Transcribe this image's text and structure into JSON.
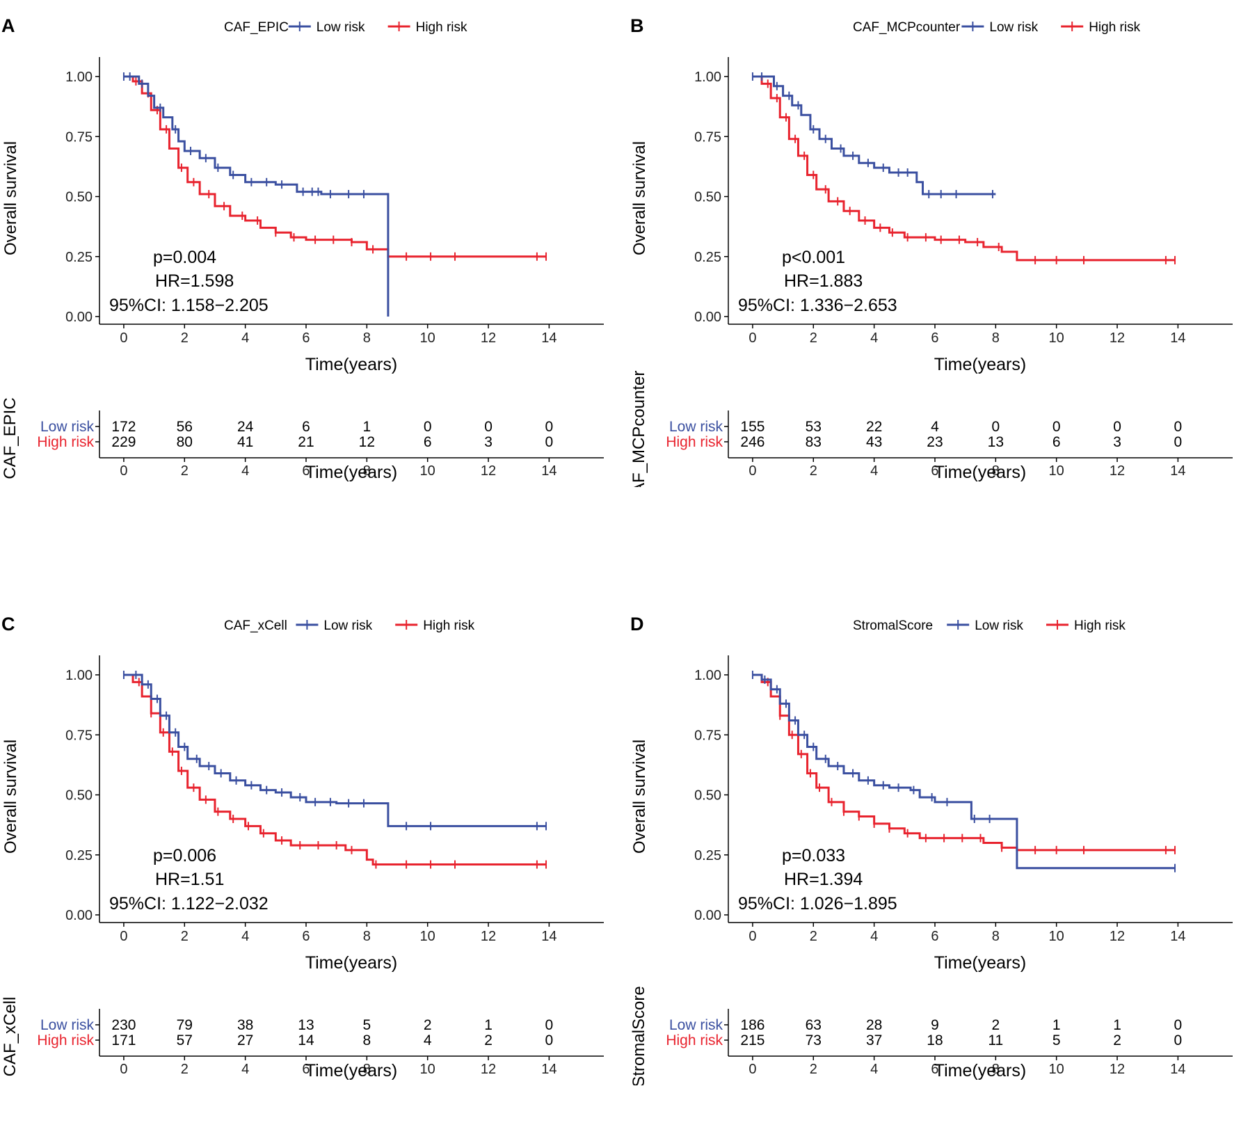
{
  "chart_data": [
    {
      "type": "line",
      "panel_letter": "A",
      "legend_title": "CAF_EPIC",
      "legend": [
        "Low risk",
        "High risk"
      ],
      "colors": {
        "low": "#3a4fa0",
        "high": "#e8232e"
      },
      "ylabel": "Overall survival",
      "xlabel": "Time(years)",
      "xticks": [
        0,
        2,
        4,
        6,
        8,
        10,
        12,
        14
      ],
      "yticks": [
        "1.00",
        "0.75",
        "0.50",
        "0.25",
        "0.00"
      ],
      "xlim": [
        -0.8,
        15.8
      ],
      "ylim": [
        0,
        1
      ],
      "stats": {
        "p": "p=0.004",
        "hr": "HR=1.598",
        "ci": "95%CI: 1.158−2.205"
      },
      "series": [
        {
          "name": "Low risk",
          "points": [
            [
              0,
              1
            ],
            [
              0.3,
              1
            ],
            [
              0.5,
              0.97
            ],
            [
              0.8,
              0.92
            ],
            [
              1.0,
              0.87
            ],
            [
              1.3,
              0.83
            ],
            [
              1.6,
              0.78
            ],
            [
              1.8,
              0.73
            ],
            [
              2.0,
              0.69
            ],
            [
              2.5,
              0.66
            ],
            [
              3.0,
              0.62
            ],
            [
              3.5,
              0.59
            ],
            [
              4.0,
              0.56
            ],
            [
              5.0,
              0.55
            ],
            [
              5.5,
              0.55
            ],
            [
              5.7,
              0.52
            ],
            [
              6.5,
              0.51
            ],
            [
              8.7,
              0.51
            ],
            [
              8.7,
              0
            ]
          ],
          "censor": [
            0,
            0.2,
            0.6,
            1.2,
            1.7,
            2.2,
            2.7,
            3.1,
            3.6,
            4.2,
            4.7,
            5.2,
            5.9,
            6.2,
            6.4,
            6.8,
            7.4,
            7.9
          ]
        },
        {
          "name": "High risk",
          "points": [
            [
              0,
              1
            ],
            [
              0.3,
              0.98
            ],
            [
              0.6,
              0.93
            ],
            [
              0.9,
              0.86
            ],
            [
              1.2,
              0.78
            ],
            [
              1.5,
              0.7
            ],
            [
              1.8,
              0.62
            ],
            [
              2.1,
              0.56
            ],
            [
              2.5,
              0.51
            ],
            [
              3.0,
              0.46
            ],
            [
              3.5,
              0.42
            ],
            [
              4.0,
              0.4
            ],
            [
              4.5,
              0.37
            ],
            [
              5.0,
              0.35
            ],
            [
              5.5,
              0.33
            ],
            [
              6.0,
              0.32
            ],
            [
              7.5,
              0.31
            ],
            [
              8.0,
              0.28
            ],
            [
              8.7,
              0.25
            ],
            [
              13.9,
              0.25
            ]
          ],
          "censor": [
            0.4,
            0.8,
            1.1,
            1.4,
            1.9,
            2.3,
            2.8,
            3.3,
            3.9,
            4.4,
            5.0,
            5.6,
            6.3,
            6.9,
            7.5,
            8.2,
            9.3,
            10.1,
            10.9,
            13.6,
            13.9
          ]
        }
      ],
      "risk_table": {
        "ylabel": "CAF_EPIC",
        "rows": [
          {
            "label": "Low risk",
            "values": [
              "172",
              "56",
              "24",
              "6",
              "1",
              "0",
              "0",
              "0"
            ]
          },
          {
            "label": "High risk",
            "values": [
              "229",
              "80",
              "41",
              "21",
              "12",
              "6",
              "3",
              "0"
            ]
          }
        ]
      }
    },
    {
      "type": "line",
      "panel_letter": "B",
      "legend_title": "CAF_MCPcounter",
      "legend": [
        "Low risk",
        "High risk"
      ],
      "colors": {
        "low": "#3a4fa0",
        "high": "#e8232e"
      },
      "ylabel": "Overall survival",
      "xlabel": "Time(years)",
      "xticks": [
        0,
        2,
        4,
        6,
        8,
        10,
        12,
        14
      ],
      "yticks": [
        "1.00",
        "0.75",
        "0.50",
        "0.25",
        "0.00"
      ],
      "xlim": [
        -0.8,
        15.8
      ],
      "ylim": [
        0,
        1
      ],
      "stats": {
        "p": "p<0.001",
        "hr": "HR=1.883",
        "ci": "95%CI: 1.336−2.653"
      },
      "series": [
        {
          "name": "Low risk",
          "points": [
            [
              0,
              1
            ],
            [
              0.4,
              1
            ],
            [
              0.7,
              0.96
            ],
            [
              1.0,
              0.92
            ],
            [
              1.3,
              0.88
            ],
            [
              1.6,
              0.84
            ],
            [
              1.9,
              0.78
            ],
            [
              2.2,
              0.74
            ],
            [
              2.6,
              0.7
            ],
            [
              3.0,
              0.67
            ],
            [
              3.5,
              0.64
            ],
            [
              4.0,
              0.62
            ],
            [
              4.5,
              0.6
            ],
            [
              5.4,
              0.6
            ],
            [
              5.4,
              0.56
            ],
            [
              5.6,
              0.51
            ],
            [
              8.0,
              0.51
            ]
          ],
          "censor": [
            0,
            0.3,
            0.8,
            1.2,
            1.5,
            2.0,
            2.4,
            2.9,
            3.3,
            3.8,
            4.3,
            4.8,
            5.1,
            5.8,
            6.2,
            6.7,
            7.9
          ]
        },
        {
          "name": "High risk",
          "points": [
            [
              0,
              1
            ],
            [
              0.3,
              0.97
            ],
            [
              0.6,
              0.91
            ],
            [
              0.9,
              0.83
            ],
            [
              1.2,
              0.74
            ],
            [
              1.5,
              0.67
            ],
            [
              1.8,
              0.59
            ],
            [
              2.1,
              0.53
            ],
            [
              2.5,
              0.48
            ],
            [
              3.0,
              0.44
            ],
            [
              3.5,
              0.4
            ],
            [
              4.0,
              0.37
            ],
            [
              4.5,
              0.35
            ],
            [
              5.0,
              0.33
            ],
            [
              6.0,
              0.32
            ],
            [
              7.0,
              0.31
            ],
            [
              7.6,
              0.29
            ],
            [
              8.2,
              0.27
            ],
            [
              8.7,
              0.235
            ],
            [
              13.9,
              0.235
            ]
          ],
          "censor": [
            0.5,
            0.8,
            1.1,
            1.4,
            1.7,
            2.0,
            2.4,
            2.8,
            3.2,
            3.7,
            4.2,
            4.6,
            5.1,
            5.7,
            6.2,
            6.8,
            7.4,
            8.1,
            9.3,
            10.0,
            10.9,
            13.6,
            13.9
          ]
        }
      ],
      "risk_table": {
        "ylabel": "CAF_MCPcounter",
        "rows": [
          {
            "label": "Low risk",
            "values": [
              "155",
              "53",
              "22",
              "4",
              "0",
              "0",
              "0",
              "0"
            ]
          },
          {
            "label": "High risk",
            "values": [
              "246",
              "83",
              "43",
              "23",
              "13",
              "6",
              "3",
              "0"
            ]
          }
        ]
      }
    },
    {
      "type": "line",
      "panel_letter": "C",
      "legend_title": "CAF_xCell",
      "legend": [
        "Low risk",
        "High risk"
      ],
      "colors": {
        "low": "#3a4fa0",
        "high": "#e8232e"
      },
      "ylabel": "Overall survival",
      "xlabel": "Time(years)",
      "xticks": [
        0,
        2,
        4,
        6,
        8,
        10,
        12,
        14
      ],
      "yticks": [
        "1.00",
        "0.75",
        "0.50",
        "0.25",
        "0.00"
      ],
      "xlim": [
        -0.8,
        15.8
      ],
      "ylim": [
        0,
        1
      ],
      "stats": {
        "p": "p=0.006",
        "hr": "HR=1.51",
        "ci": "95%CI: 1.122−2.032"
      },
      "series": [
        {
          "name": "Low risk",
          "points": [
            [
              0,
              1
            ],
            [
              0.3,
              1
            ],
            [
              0.6,
              0.96
            ],
            [
              0.9,
              0.9
            ],
            [
              1.2,
              0.83
            ],
            [
              1.5,
              0.76
            ],
            [
              1.8,
              0.7
            ],
            [
              2.1,
              0.65
            ],
            [
              2.5,
              0.62
            ],
            [
              3.0,
              0.59
            ],
            [
              3.5,
              0.56
            ],
            [
              4.0,
              0.54
            ],
            [
              4.5,
              0.52
            ],
            [
              5.0,
              0.51
            ],
            [
              5.5,
              0.49
            ],
            [
              6.0,
              0.47
            ],
            [
              7.0,
              0.465
            ],
            [
              8.7,
              0.465
            ],
            [
              8.7,
              0.37
            ],
            [
              13.9,
              0.37
            ]
          ],
          "censor": [
            0,
            0.4,
            0.8,
            1.1,
            1.4,
            1.7,
            2.0,
            2.4,
            2.8,
            3.2,
            3.7,
            4.2,
            4.7,
            5.2,
            5.8,
            6.3,
            6.8,
            7.4,
            7.9,
            9.3,
            10.1,
            13.6,
            13.9
          ]
        },
        {
          "name": "High risk",
          "points": [
            [
              0,
              1
            ],
            [
              0.3,
              0.97
            ],
            [
              0.6,
              0.91
            ],
            [
              0.9,
              0.84
            ],
            [
              1.2,
              0.76
            ],
            [
              1.5,
              0.68
            ],
            [
              1.8,
              0.6
            ],
            [
              2.1,
              0.53
            ],
            [
              2.5,
              0.48
            ],
            [
              3.0,
              0.43
            ],
            [
              3.5,
              0.4
            ],
            [
              4.0,
              0.37
            ],
            [
              4.5,
              0.34
            ],
            [
              5.0,
              0.31
            ],
            [
              5.5,
              0.29
            ],
            [
              7.2,
              0.29
            ],
            [
              7.3,
              0.27
            ],
            [
              8.0,
              0.23
            ],
            [
              8.2,
              0.21
            ],
            [
              13.9,
              0.21
            ]
          ],
          "censor": [
            0.5,
            0.9,
            1.3,
            1.6,
            1.9,
            2.3,
            2.7,
            3.1,
            3.6,
            4.1,
            4.6,
            5.2,
            5.8,
            6.4,
            7.0,
            7.5,
            8.3,
            9.3,
            10.1,
            10.9,
            13.6,
            13.9
          ]
        }
      ],
      "risk_table": {
        "ylabel": "CAF_xCell",
        "rows": [
          {
            "label": "Low risk",
            "values": [
              "230",
              "79",
              "38",
              "13",
              "5",
              "2",
              "1",
              "0"
            ]
          },
          {
            "label": "High risk",
            "values": [
              "171",
              "57",
              "27",
              "14",
              "8",
              "4",
              "2",
              "0"
            ]
          }
        ]
      }
    },
    {
      "type": "line",
      "panel_letter": "D",
      "legend_title": "StromalScore",
      "legend": [
        "Low risk",
        "High risk"
      ],
      "colors": {
        "low": "#3a4fa0",
        "high": "#e8232e"
      },
      "ylabel": "Overall survival",
      "xlabel": "Time(years)",
      "xticks": [
        0,
        2,
        4,
        6,
        8,
        10,
        12,
        14
      ],
      "yticks": [
        "1.00",
        "0.75",
        "0.50",
        "0.25",
        "0.00"
      ],
      "xlim": [
        -0.8,
        15.8
      ],
      "ylim": [
        0,
        1
      ],
      "stats": {
        "p": "p=0.033",
        "hr": "HR=1.394",
        "ci": "95%CI: 1.026−1.895"
      },
      "series": [
        {
          "name": "Low risk",
          "points": [
            [
              0,
              1
            ],
            [
              0.3,
              0.98
            ],
            [
              0.6,
              0.94
            ],
            [
              0.9,
              0.88
            ],
            [
              1.2,
              0.81
            ],
            [
              1.5,
              0.75
            ],
            [
              1.8,
              0.7
            ],
            [
              2.1,
              0.65
            ],
            [
              2.5,
              0.62
            ],
            [
              3.0,
              0.59
            ],
            [
              3.5,
              0.56
            ],
            [
              4.0,
              0.54
            ],
            [
              4.5,
              0.53
            ],
            [
              5.2,
              0.52
            ],
            [
              5.5,
              0.49
            ],
            [
              6.0,
              0.47
            ],
            [
              7.0,
              0.47
            ],
            [
              7.2,
              0.4
            ],
            [
              8.7,
              0.39
            ],
            [
              8.7,
              0.195
            ],
            [
              13.9,
              0.195
            ]
          ],
          "censor": [
            0,
            0.4,
            0.8,
            1.1,
            1.4,
            1.7,
            2.0,
            2.4,
            2.8,
            3.3,
            3.8,
            4.3,
            4.8,
            5.3,
            5.9,
            6.4,
            7.3,
            7.8,
            13.9
          ]
        },
        {
          "name": "High risk",
          "points": [
            [
              0,
              1
            ],
            [
              0.3,
              0.97
            ],
            [
              0.6,
              0.91
            ],
            [
              0.9,
              0.83
            ],
            [
              1.2,
              0.75
            ],
            [
              1.5,
              0.67
            ],
            [
              1.8,
              0.59
            ],
            [
              2.1,
              0.53
            ],
            [
              2.5,
              0.47
            ],
            [
              3.0,
              0.43
            ],
            [
              3.5,
              0.41
            ],
            [
              4.0,
              0.38
            ],
            [
              4.5,
              0.36
            ],
            [
              5.0,
              0.34
            ],
            [
              5.5,
              0.32
            ],
            [
              7.0,
              0.32
            ],
            [
              7.6,
              0.3
            ],
            [
              8.2,
              0.28
            ],
            [
              8.7,
              0.27
            ],
            [
              13.9,
              0.27
            ]
          ],
          "censor": [
            0.5,
            0.9,
            1.3,
            1.6,
            1.9,
            2.2,
            2.6,
            3.0,
            3.5,
            4.0,
            4.5,
            5.1,
            5.7,
            6.3,
            6.9,
            7.5,
            8.2,
            9.3,
            10.0,
            10.9,
            13.6,
            13.9
          ]
        }
      ],
      "risk_table": {
        "ylabel": "StromalScore",
        "rows": [
          {
            "label": "Low risk",
            "values": [
              "186",
              "63",
              "28",
              "9",
              "2",
              "1",
              "1",
              "0"
            ]
          },
          {
            "label": "High risk",
            "values": [
              "215",
              "73",
              "37",
              "18",
              "11",
              "5",
              "2",
              "0"
            ]
          }
        ]
      }
    }
  ]
}
